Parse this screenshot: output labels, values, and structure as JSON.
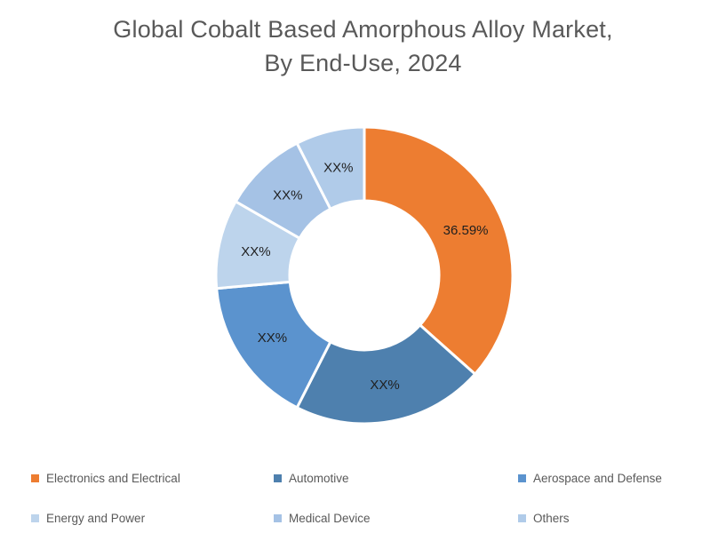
{
  "title": {
    "line1": "Global Cobalt Based Amorphous Alloy Market,",
    "line2": "By End-Use, 2024"
  },
  "chart_data": {
    "type": "pie",
    "subtype": "donut",
    "title": "Global Cobalt Based Amorphous Alloy Market, By End-Use, 2024",
    "unit": "%",
    "direction": "clockwise",
    "start_angle_deg": 0,
    "inner_radius_ratio": 0.5,
    "grid": false,
    "legend_position": "bottom",
    "segments": [
      {
        "label": "Electronics and Electrical",
        "value": 36.59,
        "display_label": "36.59%",
        "value_estimated": false,
        "color": "#ED7D31"
      },
      {
        "label": "Automotive",
        "value": 20.9,
        "display_label": "XX%",
        "value_estimated": true,
        "color": "#4E80AE"
      },
      {
        "label": "Aerospace and Defense",
        "value": 16.1,
        "display_label": "XX%",
        "value_estimated": true,
        "color": "#5B93CE"
      },
      {
        "label": "Energy and Power",
        "value": 9.7,
        "display_label": "XX%",
        "value_estimated": true,
        "color": "#BDD4EC"
      },
      {
        "label": "Medical Device",
        "value": 9.2,
        "display_label": "XX%",
        "value_estimated": true,
        "color": "#A5C2E5"
      },
      {
        "label": "Others",
        "value": 7.5,
        "display_label": "XX%",
        "value_estimated": true,
        "color": "#B0CBE9"
      }
    ],
    "legend_rows": [
      [
        "Electronics and Electrical",
        "Automotive",
        "Aerospace and Defense"
      ],
      [
        "Energy and Power",
        "Medical Device",
        "Others"
      ]
    ]
  },
  "colors": {
    "background": "#FFFFFF",
    "title_text": "#595959",
    "legend_text": "#595959",
    "slice_label_text": "#1F1F1F",
    "slice_gap": "#FFFFFF"
  }
}
